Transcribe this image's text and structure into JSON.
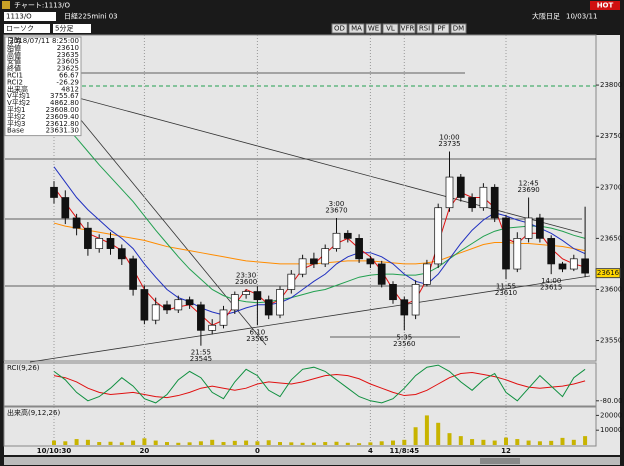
{
  "window": {
    "title": "チャート:1113/O",
    "hot": "HOT",
    "symbol": "1113/O",
    "name": "日経225mini 03",
    "session": "大阪日足",
    "date": "10/03/11",
    "chart_style": "ローソク",
    "interval": "5分足",
    "buttons": [
      "OD",
      "MA",
      "WE",
      "VL",
      "VFR",
      "RSI",
      "PF",
      "DM"
    ]
  },
  "info": {
    "rows": [
      [
        "日時",
        "2018/07/11 8:25:00"
      ],
      [
        "始値",
        "23610"
      ],
      [
        "高値",
        "23635"
      ],
      [
        "安値",
        "23605"
      ],
      [
        "終値",
        "23625"
      ],
      [
        "RCI1",
        "66.67"
      ],
      [
        "RCI2",
        "-26.29"
      ],
      [
        "出来高",
        "4812"
      ],
      [
        "V平均1",
        "3755.67"
      ],
      [
        "V平均2",
        "4862.80"
      ],
      [
        "平均1",
        "23608.00"
      ],
      [
        "平均2",
        "23609.40"
      ],
      [
        "平均3",
        "23612.80"
      ],
      [
        "Base",
        "23631.30"
      ]
    ]
  },
  "chart_data": [
    {
      "type": "candlestick",
      "categories": [
        "10/10:30",
        null,
        null,
        null,
        null,
        null,
        null,
        null,
        "20",
        null,
        null,
        null,
        null,
        null,
        null,
        null,
        null,
        null,
        "0",
        null,
        null,
        null,
        null,
        null,
        null,
        null,
        null,
        null,
        "4",
        null,
        null,
        "11/8:45",
        null,
        null,
        null,
        null,
        null,
        null,
        null,
        null,
        "12",
        null,
        null,
        null,
        null,
        null,
        null,
        null
      ],
      "open": [
        23700,
        23690,
        23670,
        23660,
        23640,
        23650,
        23640,
        23630,
        23600,
        23570,
        23585,
        23580,
        23590,
        23585,
        23560,
        23565,
        23580,
        23595,
        23598,
        23590,
        23575,
        23600,
        23615,
        23630,
        23625,
        23640,
        23655,
        23650,
        23630,
        23625,
        23605,
        23590,
        23575,
        23605,
        23625,
        23680,
        23710,
        23690,
        23680,
        23700,
        23670,
        23620,
        23650,
        23670,
        23650,
        23625,
        23620,
        23630
      ],
      "high": [
        23706,
        23697,
        23674,
        23666,
        23654,
        23656,
        23644,
        23633,
        23604,
        23592,
        23589,
        23594,
        23593,
        23588,
        23571,
        23584,
        23598,
        23600,
        23603,
        23594,
        23603,
        23619,
        23634,
        23636,
        23644,
        23670,
        23658,
        23654,
        23633,
        23628,
        23608,
        23593,
        23609,
        23629,
        23684,
        23735,
        23713,
        23694,
        23704,
        23703,
        23673,
        23656,
        23690,
        23674,
        23653,
        23627,
        23634,
        23681
      ],
      "low": [
        23684,
        23664,
        23653,
        23633,
        23636,
        23634,
        23624,
        23594,
        23566,
        23566,
        23576,
        23577,
        23581,
        23545,
        23556,
        23562,
        23576,
        23591,
        23565,
        23571,
        23572,
        23596,
        23612,
        23621,
        23622,
        23637,
        23646,
        23626,
        23621,
        23602,
        23586,
        23560,
        23571,
        23603,
        23621,
        23676,
        23686,
        23676,
        23677,
        23666,
        23610,
        23617,
        23646,
        23646,
        23615,
        23617,
        23618,
        23612
      ],
      "close": [
        23690,
        23670,
        23660,
        23640,
        23650,
        23640,
        23630,
        23600,
        23570,
        23585,
        23580,
        23590,
        23585,
        23560,
        23565,
        23580,
        23595,
        23598,
        23590,
        23575,
        23600,
        23615,
        23630,
        23625,
        23640,
        23655,
        23650,
        23630,
        23625,
        23605,
        23590,
        23575,
        23605,
        23625,
        23680,
        23710,
        23690,
        23680,
        23700,
        23670,
        23620,
        23650,
        23670,
        23650,
        23625,
        23620,
        23630,
        23616
      ],
      "series": [
        {
          "color": "#ff8c00",
          "values": [
            23665,
            23662,
            23660,
            23658,
            23656,
            23654,
            23652,
            23650,
            23648,
            23645,
            23642,
            23640,
            23638,
            23636,
            23634,
            23632,
            23630,
            23628,
            23627,
            23626,
            23625,
            23625,
            23625,
            23625,
            23626,
            23627,
            23628,
            23628,
            23628,
            23627,
            23626,
            23625,
            23625,
            23626,
            23628,
            23632,
            23636,
            23640,
            23644,
            23646,
            23646,
            23645,
            23645,
            23644,
            23643,
            23642,
            23640,
            23638
          ]
        },
        {
          "color": "#22a050",
          "values": [
            23770,
            23760,
            23748,
            23735,
            23722,
            23710,
            23698,
            23686,
            23672,
            23658,
            23645,
            23632,
            23620,
            23610,
            23600,
            23594,
            23590,
            23588,
            23587,
            23588,
            23590,
            23592,
            23595,
            23598,
            23600,
            23604,
            23608,
            23612,
            23614,
            23615,
            23615,
            23614,
            23614,
            23616,
            23622,
            23630,
            23638,
            23645,
            23652,
            23657,
            23660,
            23661,
            23662,
            23662,
            23660,
            23657,
            23653,
            23650
          ]
        },
        {
          "color": "#2030c0",
          "values": [
            23720,
            23705,
            23690,
            23678,
            23668,
            23658,
            23650,
            23640,
            23625,
            23612,
            23600,
            23592,
            23588,
            23582,
            23578,
            23575,
            23578,
            23582,
            23585,
            23585,
            23587,
            23592,
            23600,
            23608,
            23615,
            23625,
            23632,
            23636,
            23636,
            23632,
            23625,
            23615,
            23608,
            23605,
            23615,
            23630,
            23645,
            23658,
            23668,
            23675,
            23672,
            23668,
            23665,
            23660,
            23655,
            23648,
            23640,
            23635
          ]
        },
        {
          "color": "#e01010",
          "values": [
            23700,
            23685,
            23670,
            23655,
            23650,
            23645,
            23638,
            23620,
            23600,
            23588,
            23580,
            23583,
            23585,
            23575,
            23565,
            23570,
            23585,
            23600,
            23595,
            23585,
            23590,
            23605,
            23620,
            23625,
            23635,
            23645,
            23650,
            23640,
            23632,
            23618,
            23600,
            23585,
            23590,
            23610,
            23645,
            23680,
            23695,
            23690,
            23690,
            23680,
            23650,
            23645,
            23655,
            23655,
            23640,
            23630,
            23625,
            23622
          ]
        }
      ],
      "annotations": [
        {
          "time": "21:55",
          "price": 23545
        },
        {
          "time": "6:10",
          "price": 23565
        },
        {
          "time": "23:30",
          "price": 23600
        },
        {
          "time": "3:00",
          "price": 23670
        },
        {
          "time": "5:35",
          "price": 23560
        },
        {
          "time": "10:00",
          "price": 23735
        },
        {
          "time": "11:55",
          "price": 23610
        },
        {
          "time": "12:45",
          "price": 23690
        },
        {
          "time": "14:00",
          "price": 23615
        }
      ],
      "ylim": [
        23531,
        23849
      ],
      "yticks": [
        23550,
        23600,
        23650,
        23700,
        23750,
        23800
      ]
    },
    {
      "type": "line",
      "title": "RCI(9,26)",
      "ylim": [
        -100,
        100
      ],
      "yticks": [
        {
          "value": -80,
          "label": "-80.00"
        }
      ],
      "series": [
        {
          "color": "#e01010",
          "values": [
            40,
            30,
            10,
            -20,
            -40,
            -50,
            -45,
            -40,
            -50,
            -60,
            -65,
            -55,
            -40,
            -20,
            -10,
            -20,
            -30,
            -20,
            0,
            10,
            5,
            0,
            10,
            25,
            40,
            45,
            40,
            25,
            0,
            -20,
            -40,
            -55,
            -50,
            -30,
            0,
            30,
            50,
            55,
            45,
            35,
            20,
            0,
            -15,
            -20,
            -15,
            -10,
            0,
            15
          ]
        },
        {
          "color": "#109040",
          "values": [
            60,
            20,
            -40,
            -80,
            -60,
            -20,
            30,
            -10,
            -70,
            -90,
            -50,
            20,
            60,
            30,
            -40,
            -70,
            10,
            70,
            40,
            -30,
            -60,
            20,
            70,
            80,
            60,
            20,
            -20,
            -60,
            -80,
            -90,
            -70,
            -20,
            40,
            80,
            90,
            60,
            10,
            -30,
            20,
            50,
            -40,
            -80,
            -20,
            40,
            -10,
            -60,
            30,
            70
          ]
        }
      ]
    },
    {
      "type": "bar",
      "title": "出来高(9,12,26)",
      "ylim": [
        0,
        25000
      ],
      "yticks": [
        10000,
        20000
      ],
      "color": "#c8b400",
      "values": [
        3000,
        2500,
        4000,
        3500,
        2000,
        2200,
        1800,
        3000,
        4500,
        3000,
        2000,
        1500,
        1800,
        2500,
        3500,
        2000,
        2800,
        3000,
        2500,
        3200,
        2000,
        1800,
        1500,
        1600,
        2000,
        2200,
        1500,
        1200,
        1800,
        2500,
        3000,
        3500,
        12000,
        20000,
        15000,
        8000,
        6000,
        4000,
        3500,
        3000,
        5000,
        4000,
        3000,
        2500,
        2800,
        4812,
        3500,
        6000
      ]
    }
  ]
}
